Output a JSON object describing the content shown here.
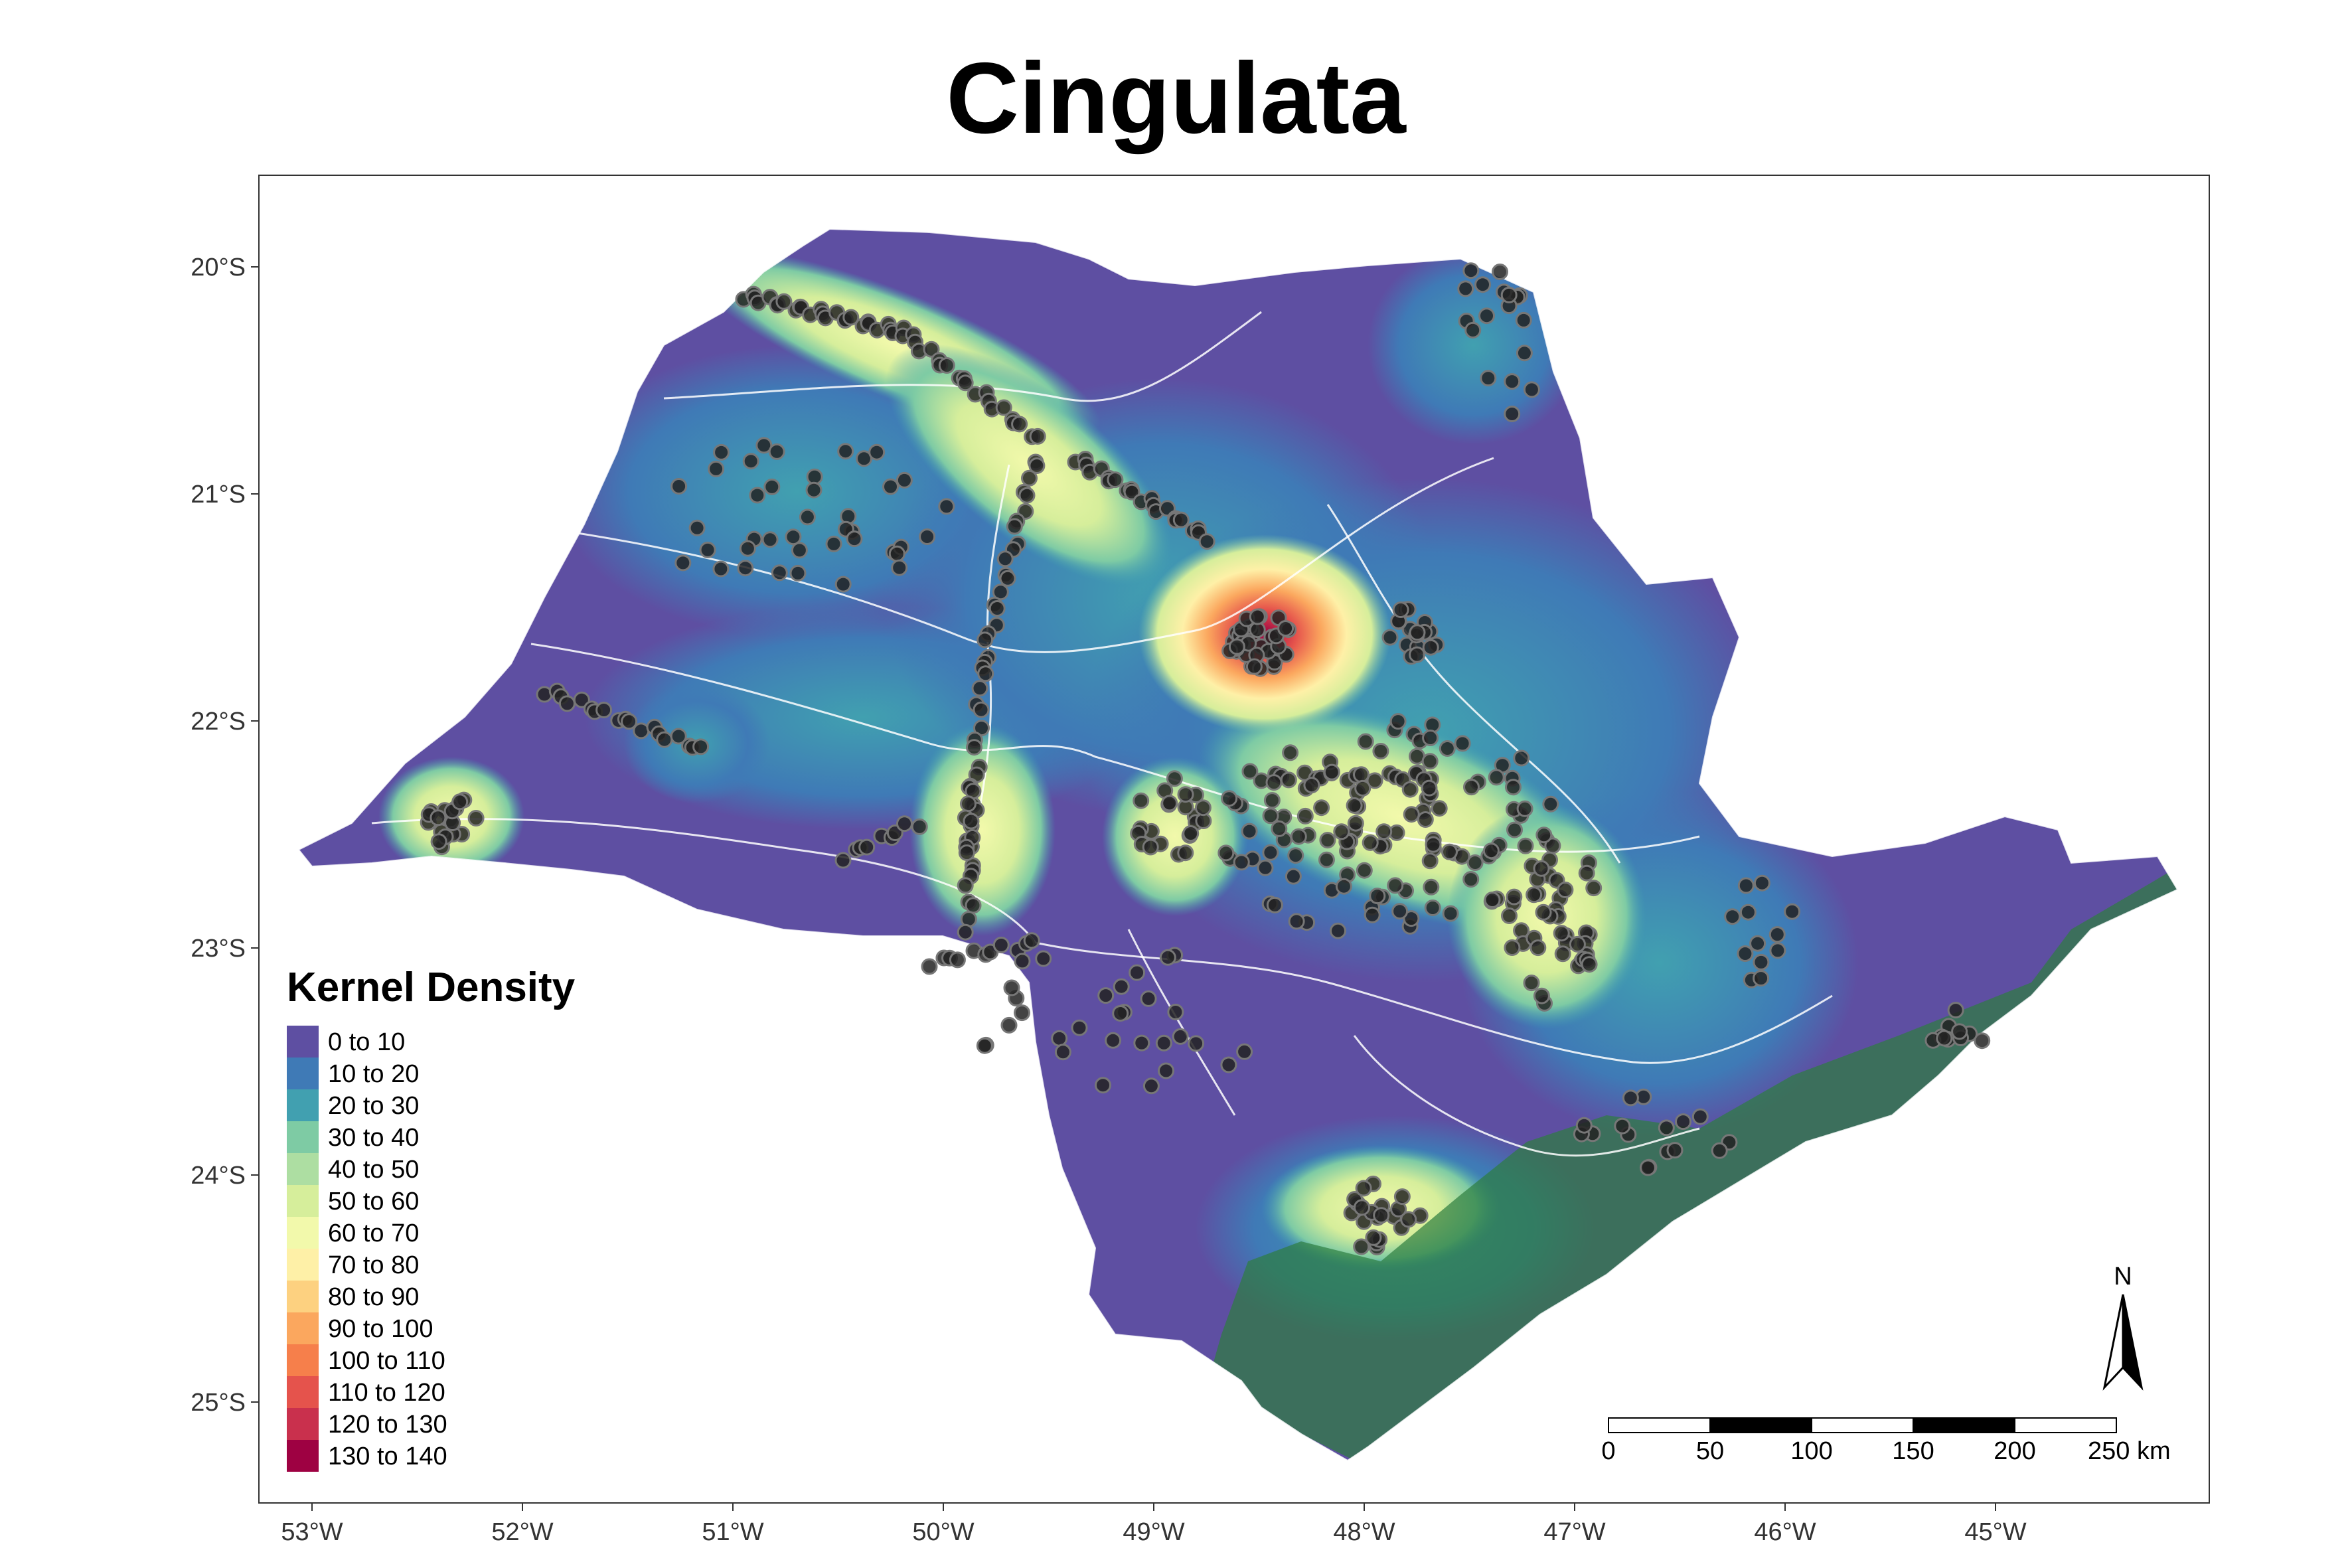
{
  "title": "Cingulata",
  "axes": {
    "x_ticks": [
      "53°W",
      "52°W",
      "51°W",
      "50°W",
      "49°W",
      "48°W",
      "47°W",
      "46°W",
      "45°W"
    ],
    "y_ticks": [
      "20°S",
      "21°S",
      "22°S",
      "23°S",
      "24°S",
      "25°S"
    ]
  },
  "legend": {
    "title": "Kernel Density",
    "items": [
      {
        "label": "0 to 10",
        "color": "#5E4FA2"
      },
      {
        "label": "10 to 20",
        "color": "#3F7AB6"
      },
      {
        "label": "20 to 30",
        "color": "#41A0B0"
      },
      {
        "label": "30 to 40",
        "color": "#7ECBA4"
      },
      {
        "label": "40 to 50",
        "color": "#ADDEA2"
      },
      {
        "label": "50 to 60",
        "color": "#D6EE9B"
      },
      {
        "label": "60 to 70",
        "color": "#F2F9AB"
      },
      {
        "label": "70 to 80",
        "color": "#FEF0A7"
      },
      {
        "label": "80 to 90",
        "color": "#FDD180"
      },
      {
        "label": "90 to 100",
        "color": "#FBA75E"
      },
      {
        "label": "100 to 110",
        "color": "#F67F4B"
      },
      {
        "label": "110 to 120",
        "color": "#E5534C"
      },
      {
        "label": "120 to 130",
        "color": "#C9304D"
      },
      {
        "label": "130 to 140",
        "color": "#9E0142"
      }
    ]
  },
  "north_arrow": {
    "label": "N"
  },
  "scale_bar": {
    "labels": [
      "0",
      "50",
      "100",
      "150",
      "200",
      "250 km"
    ]
  },
  "colors": {
    "forest": "#2E7D3F",
    "rivers": "#ffffff",
    "points": "#222222"
  }
}
